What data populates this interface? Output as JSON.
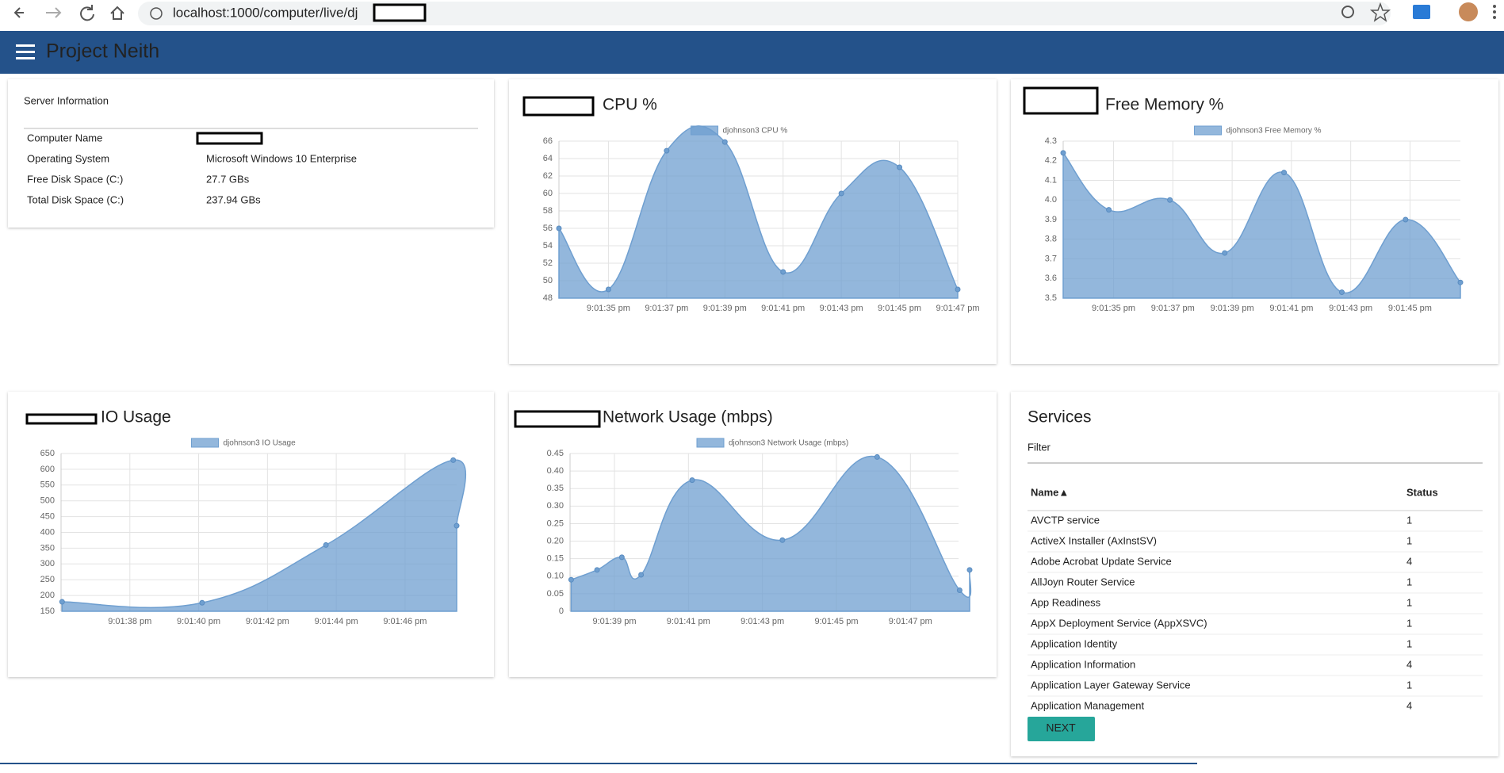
{
  "browser": {
    "url": "localhost:1000/computer/live/dj"
  },
  "header": {
    "title": "Project Neith"
  },
  "server_info": {
    "title": "Server Information",
    "rows": [
      {
        "label": "Computer Name"
      },
      {
        "label": "Operating System",
        "value": "Microsoft Windows 10 Enterprise"
      },
      {
        "label": "Free Disk Space (C:)",
        "value": "27.7 GBs"
      },
      {
        "label": "Total Disk Space (C:)",
        "value": "237.94 GBs"
      }
    ]
  },
  "chart_data": [
    {
      "type": "line",
      "fill": true,
      "title": "CPU %",
      "grid": true,
      "x": [
        33.3,
        35,
        37,
        39,
        41,
        43,
        45,
        47
      ],
      "xlim": [
        33.3,
        47
      ],
      "xticks": [
        {
          "value": 35,
          "label": "9:01:35 pm"
        },
        {
          "value": 37,
          "label": "9:01:37 pm"
        },
        {
          "value": 39,
          "label": "9:01:39 pm"
        },
        {
          "value": 41,
          "label": "9:01:41 pm"
        },
        {
          "value": 43,
          "label": "9:01:43 pm"
        },
        {
          "value": 45,
          "label": "9:01:45 pm"
        },
        {
          "value": 47,
          "label": "9:01:47 pm"
        }
      ],
      "ylim": [
        48,
        66
      ],
      "yticks": [
        48,
        50,
        52,
        54,
        56,
        58,
        60,
        62,
        64,
        66
      ],
      "series": [
        {
          "name": "djohnson3 CPU %",
          "color": "#6f9fd0",
          "values": [
            56,
            49,
            64.9,
            65.9,
            51,
            60,
            63,
            49
          ]
        }
      ]
    },
    {
      "type": "line",
      "fill": true,
      "title": "Free Memory %",
      "grid": true,
      "x": [
        33.3,
        34.84,
        36.9,
        38.75,
        40.75,
        42.7,
        44.85,
        46.7
      ],
      "xlim": [
        33.3,
        46.7
      ],
      "xticks": [
        {
          "value": 35,
          "label": "9:01:35 pm"
        },
        {
          "value": 37,
          "label": "9:01:37 pm"
        },
        {
          "value": 39,
          "label": "9:01:39 pm"
        },
        {
          "value": 41,
          "label": "9:01:41 pm"
        },
        {
          "value": 43,
          "label": "9:01:43 pm"
        },
        {
          "value": 45,
          "label": "9:01:45 pm"
        }
      ],
      "ylim": [
        3.5,
        4.3
      ],
      "yticks": [
        3.5,
        3.6,
        3.7,
        3.8,
        3.9,
        {
          "value": 4,
          "label": "4.0"
        },
        4.1,
        4.2,
        4.3
      ],
      "series": [
        {
          "name": "djohnson3 Free Memory %",
          "color": "#6f9fd0",
          "values": [
            4.24,
            3.95,
            4.0,
            3.73,
            4.14,
            3.53,
            3.9,
            3.58
          ]
        }
      ]
    },
    {
      "type": "line",
      "fill": true,
      "title": "IO Usage",
      "grid": true,
      "x": [
        36.03,
        40.1,
        43.7,
        47.4,
        47.5
      ],
      "xlim": [
        36,
        47.5
      ],
      "xticks": [
        {
          "value": 38,
          "label": "9:01:38 pm"
        },
        {
          "value": 40,
          "label": "9:01:40 pm"
        },
        {
          "value": 42,
          "label": "9:01:42 pm"
        },
        {
          "value": 44,
          "label": "9:01:44 pm"
        },
        {
          "value": 46,
          "label": "9:01:46 pm"
        }
      ],
      "ylim": [
        150,
        650
      ],
      "yticks": [
        150,
        200,
        250,
        300,
        350,
        400,
        450,
        500,
        550,
        600,
        650
      ],
      "series": [
        {
          "name": "djohnson3 IO Usage",
          "color": "#6f9fd0",
          "values": [
            180,
            177,
            360,
            629,
            421
          ]
        }
      ]
    },
    {
      "type": "line",
      "fill": true,
      "title": "Network Usage (mbps)",
      "grid": true,
      "x": [
        37.83,
        38.53,
        39.2,
        39.72,
        41.1,
        43.54,
        46.1,
        48.33,
        48.6
      ],
      "xlim": [
        37.8,
        48.3
      ],
      "xticks": [
        {
          "value": 39,
          "label": "9:01:39 pm"
        },
        {
          "value": 41,
          "label": "9:01:41 pm"
        },
        {
          "value": 43,
          "label": "9:01:43 pm"
        },
        {
          "value": 45,
          "label": "9:01:45 pm"
        },
        {
          "value": 47,
          "label": "9:01:47 pm"
        }
      ],
      "ylim": [
        0,
        0.45
      ],
      "yticks": [
        0,
        0.05,
        {
          "value": 0.1,
          "label": "0.10"
        },
        0.15,
        {
          "value": 0.2,
          "label": "0.20"
        },
        0.25,
        {
          "value": 0.3,
          "label": "0.30"
        },
        0.35,
        {
          "value": 0.4,
          "label": "0.40"
        },
        0.45
      ],
      "series": [
        {
          "name": "djohnson3 Network Usage (mbps)",
          "color": "#6f9fd0",
          "values": [
            0.09,
            0.118,
            0.154,
            0.104,
            0.374,
            0.203,
            0.44,
            0.06,
            0.118
          ]
        }
      ]
    }
  ],
  "services": {
    "title": "Services",
    "filter_placeholder": "Filter",
    "columns": [
      "Name▲",
      "Status"
    ],
    "rows": [
      [
        "AVCTP service",
        1
      ],
      [
        "ActiveX Installer (AxInstSV)",
        1
      ],
      [
        "Adobe Acrobat Update Service",
        4
      ],
      [
        "AllJoyn Router Service",
        1
      ],
      [
        "App Readiness",
        1
      ],
      [
        "AppX Deployment Service (AppXSVC)",
        1
      ],
      [
        "Application Identity",
        1
      ],
      [
        "Application Information",
        4
      ],
      [
        "Application Layer Gateway Service",
        1
      ],
      [
        "Application Management",
        4
      ]
    ],
    "button": "NEXT"
  }
}
